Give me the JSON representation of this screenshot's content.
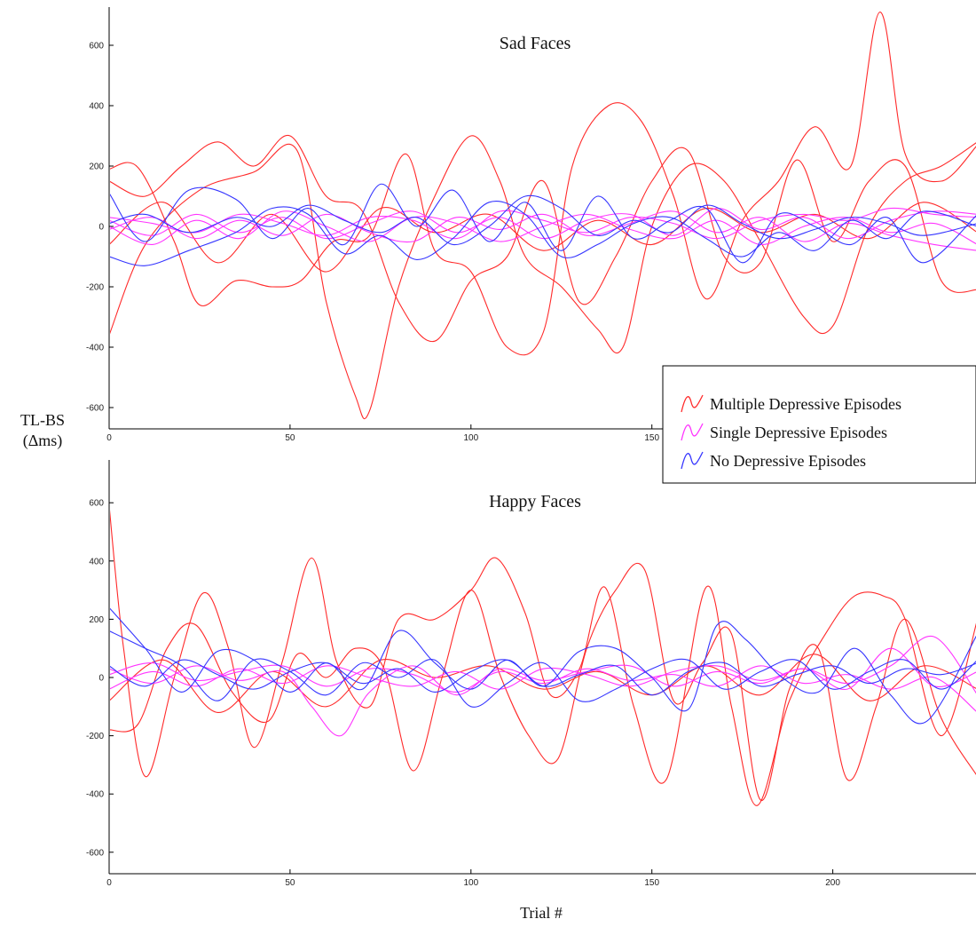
{
  "figure": {
    "ylabel_line1": "TL-BS",
    "ylabel_line2": "(Δms)",
    "xlabel": "Trial #"
  },
  "legend": {
    "placement": "right-middle",
    "items": [
      {
        "label": "Multiple  Depressive Episodes",
        "color": "#ff2a2a"
      },
      {
        "label": "Single  Depressive Episodes",
        "color": "#ff33ff"
      },
      {
        "label": "No Depressive Episodes",
        "color": "#3535ff"
      }
    ]
  },
  "chart_data": [
    {
      "type": "line",
      "title": "Sad Faces",
      "xlim": [
        0,
        240
      ],
      "ylim": [
        -650,
        700
      ],
      "xticks": [
        0,
        50,
        100,
        150
      ],
      "yticks": [
        600,
        400,
        200,
        0,
        -200,
        -400,
        -600
      ],
      "grid": false,
      "series": [
        {
          "group": "Multiple Depressive Episodes",
          "color": "#ff2a2a",
          "x": [
            0,
            10,
            25,
            40,
            52,
            60,
            68,
            72,
            80,
            90,
            100,
            108,
            115,
            125,
            135,
            142,
            150,
            160,
            170,
            180,
            192,
            200,
            210,
            220,
            230,
            240
          ],
          "y": [
            -360,
            -60,
            120,
            180,
            250,
            -250,
            -560,
            -610,
            -200,
            100,
            300,
            150,
            -100,
            -200,
            -340,
            -400,
            0,
            200,
            150,
            -50,
            -300,
            -330,
            0,
            150,
            200,
            280
          ]
        },
        {
          "group": "Multiple Depressive Episodes",
          "color": "#ff2a2a",
          "x": [
            0,
            8,
            18,
            25,
            35,
            45,
            53,
            62,
            72,
            82,
            90,
            100,
            110,
            120,
            128,
            138,
            147,
            156,
            165,
            175,
            185,
            195,
            205,
            213,
            220,
            230,
            240
          ],
          "y": [
            190,
            195,
            -50,
            -260,
            -180,
            -200,
            -180,
            -50,
            -30,
            240,
            -80,
            -150,
            -400,
            -350,
            200,
            400,
            350,
            100,
            -240,
            20,
            150,
            330,
            200,
            710,
            240,
            150,
            270
          ]
        },
        {
          "group": "Multiple Depressive Episodes",
          "color": "#ff2a2a",
          "x": [
            0,
            10,
            20,
            30,
            40,
            50,
            60,
            70,
            80,
            90,
            100,
            110,
            120,
            130,
            140,
            150,
            160,
            170,
            180,
            190,
            200,
            210,
            220,
            230,
            240
          ],
          "y": [
            150,
            100,
            200,
            280,
            200,
            300,
            100,
            50,
            -250,
            -380,
            -180,
            -100,
            150,
            -250,
            -100,
            150,
            250,
            -100,
            -120,
            220,
            -50,
            150,
            200,
            -180,
            -210
          ]
        },
        {
          "group": "Multiple Depressive Episodes",
          "color": "#ff2a2a",
          "x": [
            0,
            15,
            30,
            45,
            60,
            75,
            90,
            105,
            120,
            135,
            150,
            165,
            180,
            195,
            210,
            225,
            240
          ],
          "y": [
            -60,
            80,
            -120,
            40,
            -150,
            60,
            -20,
            40,
            -80,
            20,
            -60,
            60,
            -20,
            40,
            -40,
            80,
            -20
          ]
        },
        {
          "group": "Single Depressive Episodes",
          "color": "#ff33ff",
          "x": [
            0,
            12,
            24,
            36,
            48,
            60,
            72,
            84,
            96,
            108,
            120,
            132,
            144,
            156,
            168,
            180,
            192,
            204,
            216,
            228,
            240
          ],
          "y": [
            20,
            -30,
            40,
            -20,
            30,
            -40,
            10,
            50,
            -20,
            30,
            -40,
            20,
            40,
            -30,
            60,
            -10,
            30,
            -40,
            20,
            50,
            40
          ]
        },
        {
          "group": "Single Depressive Episodes",
          "color": "#ff33ff",
          "x": [
            0,
            12,
            24,
            36,
            48,
            60,
            72,
            84,
            96,
            108,
            120,
            132,
            144,
            156,
            168,
            180,
            192,
            204,
            216,
            228,
            240
          ],
          "y": [
            -10,
            30,
            -40,
            20,
            -30,
            40,
            -20,
            -50,
            30,
            -10,
            40,
            -30,
            10,
            50,
            -20,
            30,
            -50,
            10,
            -30,
            -60,
            -80
          ]
        },
        {
          "group": "Single Depressive Episodes",
          "color": "#ff33ff",
          "x": [
            0,
            12,
            24,
            36,
            48,
            60,
            72,
            84,
            96,
            108,
            120,
            132,
            144,
            156,
            168,
            180,
            192,
            204,
            216,
            228,
            240
          ],
          "y": [
            30,
            10,
            -20,
            40,
            10,
            -30,
            30,
            20,
            -40,
            50,
            20,
            -20,
            30,
            10,
            -40,
            20,
            40,
            20,
            60,
            40,
            30
          ]
        },
        {
          "group": "Single Depressive Episodes",
          "color": "#ff33ff",
          "x": [
            0,
            12,
            24,
            36,
            48,
            60,
            72,
            84,
            96,
            108,
            120,
            132,
            144,
            156,
            168,
            180,
            192,
            204,
            216,
            228,
            240
          ],
          "y": [
            0,
            -60,
            20,
            -40,
            50,
            0,
            -50,
            30,
            10,
            -50,
            0,
            40,
            -10,
            -40,
            20,
            -60,
            0,
            30,
            -20,
            10,
            -60
          ]
        },
        {
          "group": "No Depressive Episodes",
          "color": "#3535ff",
          "x": [
            0,
            10,
            22,
            35,
            45,
            55,
            65,
            75,
            85,
            95,
            105,
            115,
            125,
            135,
            145,
            155,
            165,
            175,
            185,
            195,
            205,
            215,
            225,
            240
          ],
          "y": [
            110,
            -50,
            120,
            90,
            -40,
            60,
            -60,
            140,
            0,
            120,
            -50,
            80,
            -80,
            100,
            -40,
            20,
            60,
            -120,
            40,
            0,
            -60,
            30,
            -120,
            40
          ]
        },
        {
          "group": "No Depressive Episodes",
          "color": "#3535ff",
          "x": [
            0,
            10,
            22,
            35,
            45,
            55,
            65,
            75,
            85,
            95,
            105,
            115,
            125,
            135,
            145,
            155,
            165,
            175,
            185,
            195,
            205,
            215,
            225,
            240
          ],
          "y": [
            -100,
            -130,
            -80,
            -20,
            60,
            40,
            -90,
            -30,
            -110,
            -40,
            80,
            40,
            -100,
            -60,
            10,
            30,
            -40,
            -100,
            -20,
            -80,
            20,
            -40,
            50,
            0
          ]
        },
        {
          "group": "No Depressive Episodes",
          "color": "#3535ff",
          "x": [
            0,
            10,
            22,
            35,
            45,
            55,
            65,
            75,
            85,
            95,
            105,
            115,
            125,
            135,
            145,
            155,
            165,
            175,
            185,
            195,
            205,
            215,
            225,
            240
          ],
          "y": [
            10,
            40,
            -20,
            30,
            0,
            70,
            20,
            -20,
            30,
            -60,
            0,
            100,
            60,
            -30,
            20,
            -20,
            70,
            10,
            -40,
            -10,
            30,
            10,
            -30,
            10
          ]
        }
      ]
    },
    {
      "type": "line",
      "title": "Happy Faces",
      "xlim": [
        0,
        240
      ],
      "ylim": [
        -650,
        720
      ],
      "xticks": [
        0,
        50,
        100,
        150,
        200
      ],
      "yticks": [
        600,
        400,
        200,
        0,
        -200,
        -400,
        -600
      ],
      "grid": false,
      "series": [
        {
          "group": "Multiple Depressive Episodes",
          "color": "#ff2a2a",
          "x": [
            0,
            4,
            10,
            18,
            26,
            33,
            40,
            48,
            56,
            63,
            72,
            80,
            90,
            100,
            107,
            115,
            122,
            130,
            137,
            145,
            154,
            165,
            172,
            179,
            188,
            198,
            206,
            214,
            220,
            230,
            240
          ],
          "y": [
            590,
            100,
            -340,
            0,
            290,
            100,
            -240,
            60,
            410,
            50,
            -100,
            200,
            200,
            300,
            410,
            220,
            -60,
            30,
            310,
            -100,
            -350,
            310,
            -100,
            -440,
            -80,
            150,
            280,
            280,
            200,
            -200,
            200
          ]
        },
        {
          "group": "Multiple Depressive Episodes",
          "color": "#ff2a2a",
          "x": [
            0,
            8,
            16,
            24,
            34,
            44,
            52,
            60,
            68,
            76,
            84,
            92,
            100,
            108,
            116,
            124,
            132,
            140,
            148,
            156,
            164,
            172,
            180,
            188,
            196,
            204,
            212,
            220,
            230,
            240
          ],
          "y": [
            -180,
            -160,
            100,
            180,
            -50,
            -150,
            80,
            0,
            100,
            30,
            -320,
            0,
            300,
            10,
            -200,
            -280,
            100,
            300,
            370,
            -80,
            50,
            150,
            -420,
            -40,
            100,
            -350,
            -100,
            200,
            -140,
            -340
          ]
        },
        {
          "group": "Multiple Depressive Episodes",
          "color": "#ff2a2a",
          "x": [
            0,
            15,
            30,
            45,
            60,
            75,
            90,
            105,
            120,
            135,
            150,
            165,
            180,
            195,
            210,
            225,
            240
          ],
          "y": [
            -80,
            60,
            -120,
            20,
            -100,
            60,
            0,
            40,
            -40,
            20,
            -60,
            40,
            -60,
            80,
            -80,
            40,
            -40
          ]
        },
        {
          "group": "Single Depressive Episodes",
          "color": "#ff33ff",
          "x": [
            0,
            12,
            24,
            36,
            48,
            56,
            64,
            72,
            84,
            96,
            108,
            120,
            132,
            144,
            156,
            168,
            180,
            192,
            204,
            216,
            228,
            240
          ],
          "y": [
            30,
            -20,
            40,
            -10,
            20,
            -100,
            -200,
            -50,
            40,
            -60,
            30,
            -10,
            20,
            40,
            -30,
            20,
            -20,
            30,
            -40,
            100,
            -30,
            20
          ]
        },
        {
          "group": "Single Depressive Episodes",
          "color": "#ff33ff",
          "x": [
            0,
            12,
            24,
            36,
            48,
            60,
            72,
            84,
            96,
            108,
            120,
            132,
            144,
            156,
            168,
            180,
            192,
            204,
            216,
            228,
            240
          ],
          "y": [
            -40,
            20,
            -30,
            30,
            -20,
            40,
            0,
            -30,
            20,
            -40,
            30,
            10,
            -30,
            20,
            40,
            -10,
            30,
            -20,
            40,
            140,
            -60
          ]
        },
        {
          "group": "Single Depressive Episodes",
          "color": "#ff33ff",
          "x": [
            0,
            12,
            24,
            36,
            48,
            60,
            72,
            84,
            96,
            108,
            120,
            132,
            144,
            156,
            168,
            180,
            192,
            204,
            216,
            228,
            240
          ],
          "y": [
            10,
            50,
            -10,
            20,
            40,
            -30,
            30,
            10,
            -50,
            20,
            -20,
            30,
            -10,
            10,
            -30,
            40,
            -20,
            10,
            -40,
            0,
            -120
          ]
        },
        {
          "group": "No Depressive Episodes",
          "color": "#3535ff",
          "x": [
            0,
            10,
            20,
            30,
            40,
            50,
            60,
            70,
            80,
            90,
            100,
            110,
            120,
            130,
            140,
            150,
            160,
            168,
            176,
            186,
            196,
            206,
            216,
            226,
            240
          ],
          "y": [
            240,
            100,
            -50,
            90,
            60,
            -50,
            50,
            -40,
            160,
            50,
            -40,
            60,
            -30,
            90,
            100,
            0,
            -110,
            180,
            130,
            0,
            -50,
            100,
            -60,
            -150,
            150
          ]
        },
        {
          "group": "No Depressive Episodes",
          "color": "#3535ff",
          "x": [
            0,
            10,
            20,
            30,
            40,
            50,
            60,
            70,
            80,
            90,
            100,
            110,
            120,
            130,
            140,
            150,
            160,
            170,
            180,
            190,
            200,
            210,
            220,
            230,
            240
          ],
          "y": [
            160,
            100,
            40,
            -80,
            60,
            20,
            -60,
            50,
            0,
            60,
            -100,
            -20,
            50,
            -80,
            -40,
            30,
            60,
            -40,
            20,
            60,
            -40,
            20,
            60,
            -40,
            60
          ]
        },
        {
          "group": "No Depressive Episodes",
          "color": "#3535ff",
          "x": [
            0,
            10,
            20,
            30,
            40,
            50,
            60,
            70,
            80,
            90,
            100,
            110,
            120,
            130,
            140,
            150,
            160,
            170,
            180,
            190,
            200,
            210,
            220,
            230,
            240
          ],
          "y": [
            40,
            -30,
            60,
            10,
            -40,
            20,
            50,
            -20,
            30,
            -50,
            20,
            60,
            -30,
            10,
            40,
            -60,
            20,
            50,
            -30,
            10,
            40,
            -20,
            30,
            10,
            50
          ]
        }
      ]
    }
  ]
}
